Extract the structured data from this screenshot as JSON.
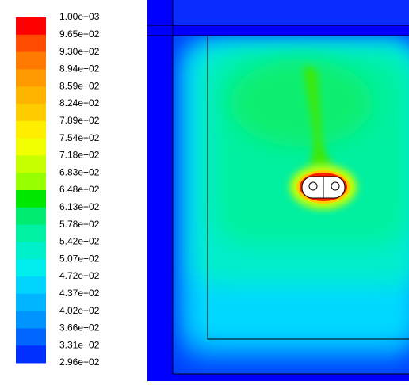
{
  "legend": {
    "labels": [
      "1.00e+03",
      "9.65e+02",
      "9.30e+02",
      "8.94e+02",
      "8.59e+02",
      "8.24e+02",
      "7.89e+02",
      "7.54e+02",
      "7.18e+02",
      "6.83e+02",
      "6.48e+02",
      "6.13e+02",
      "5.78e+02",
      "5.42e+02",
      "5.07e+02",
      "4.72e+02",
      "4.37e+02",
      "4.02e+02",
      "3.66e+02",
      "3.31e+02",
      "2.96e+02"
    ],
    "colors": [
      "#ff0000",
      "#ff4c00",
      "#ff7a00",
      "#ff9a00",
      "#ffb400",
      "#ffcc00",
      "#ffee00",
      "#f2ff00",
      "#c8ff00",
      "#98ff00",
      "#00e800",
      "#00ec70",
      "#00f0a4",
      "#00f0cc",
      "#00eeee",
      "#00d4ff",
      "#00b4ff",
      "#0094ff",
      "#0066ff",
      "#0030ff"
    ]
  }
}
